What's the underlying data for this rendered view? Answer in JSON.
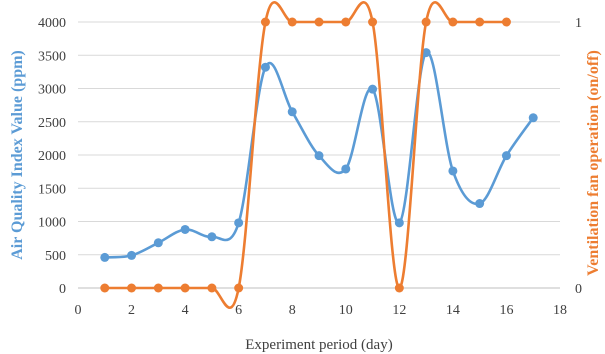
{
  "chart_data": {
    "type": "line",
    "xlabel": "Experiment period (day)",
    "ylabel_left": "Air Quality Index Value (ppm)",
    "ylabel_right": "Ventilation fan operation (on/off)",
    "xlim": [
      0,
      18
    ],
    "x_ticks": [
      0,
      2,
      4,
      6,
      8,
      10,
      12,
      14,
      16,
      18
    ],
    "ylim_left": [
      0,
      4000
    ],
    "y_left_ticks": [
      0,
      500,
      1000,
      1500,
      2000,
      2500,
      3000,
      3500,
      4000
    ],
    "ylim_right": [
      0,
      1
    ],
    "y_right_ticks": [
      0,
      1
    ],
    "grid": true,
    "series": [
      {
        "axis": "left",
        "color": "#5b9bd5",
        "smooth": true,
        "points": [
          {
            "x": 1,
            "y": 460
          },
          {
            "x": 2,
            "y": 490
          },
          {
            "x": 3,
            "y": 680
          },
          {
            "x": 4,
            "y": 880
          },
          {
            "x": 5,
            "y": 770
          },
          {
            "x": 6,
            "y": 980
          },
          {
            "x": 7,
            "y": 3320
          },
          {
            "x": 8,
            "y": 2650
          },
          {
            "x": 9,
            "y": 1990
          },
          {
            "x": 10,
            "y": 1790
          },
          {
            "x": 11,
            "y": 2990
          },
          {
            "x": 12,
            "y": 980
          },
          {
            "x": 13,
            "y": 3540
          },
          {
            "x": 14,
            "y": 1760
          },
          {
            "x": 15,
            "y": 1270
          },
          {
            "x": 16,
            "y": 1990
          },
          {
            "x": 17,
            "y": 2560
          }
        ]
      },
      {
        "axis": "right",
        "color": "#ed7d31",
        "smooth": true,
        "points": [
          {
            "x": 1,
            "y": 0
          },
          {
            "x": 2,
            "y": 0
          },
          {
            "x": 3,
            "y": 0
          },
          {
            "x": 4,
            "y": 0
          },
          {
            "x": 5,
            "y": 0
          },
          {
            "x": 6,
            "y": 0
          },
          {
            "x": 7,
            "y": 1
          },
          {
            "x": 8,
            "y": 1
          },
          {
            "x": 9,
            "y": 1
          },
          {
            "x": 10,
            "y": 1
          },
          {
            "x": 11,
            "y": 1
          },
          {
            "x": 12,
            "y": 0
          },
          {
            "x": 13,
            "y": 1
          },
          {
            "x": 14,
            "y": 1
          },
          {
            "x": 15,
            "y": 1
          },
          {
            "x": 16,
            "y": 1
          }
        ]
      }
    ]
  }
}
